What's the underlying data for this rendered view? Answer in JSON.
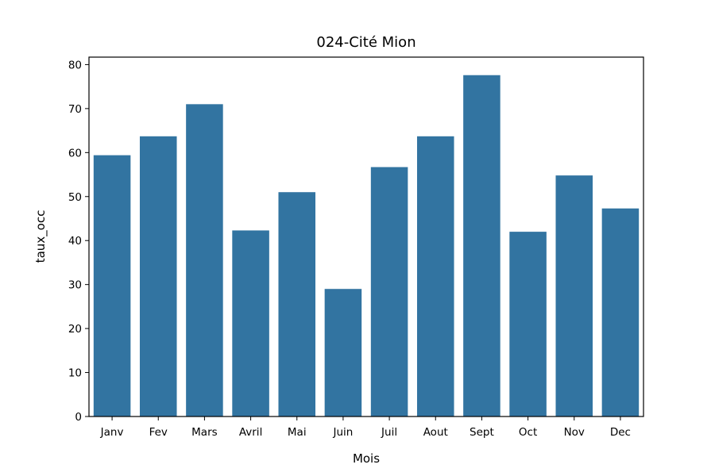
{
  "chart_data": {
    "type": "bar",
    "title": "024-Cité Mion",
    "xlabel": "Mois",
    "ylabel": "taux_occ",
    "categories": [
      "Janv",
      "Fev",
      "Mars",
      "Avril",
      "Mai",
      "Juin",
      "Juil",
      "Aout",
      "Sept",
      "Oct",
      "Nov",
      "Dec"
    ],
    "values": [
      59.4,
      63.7,
      71.0,
      42.3,
      51.0,
      29.0,
      56.7,
      63.7,
      77.6,
      42.0,
      54.8,
      47.3
    ],
    "ylim": [
      0,
      81.7
    ],
    "yticks": [
      0,
      10,
      20,
      30,
      40,
      50,
      60,
      70,
      80
    ],
    "grid": false,
    "colors": {
      "bar": "#3274a1"
    }
  }
}
